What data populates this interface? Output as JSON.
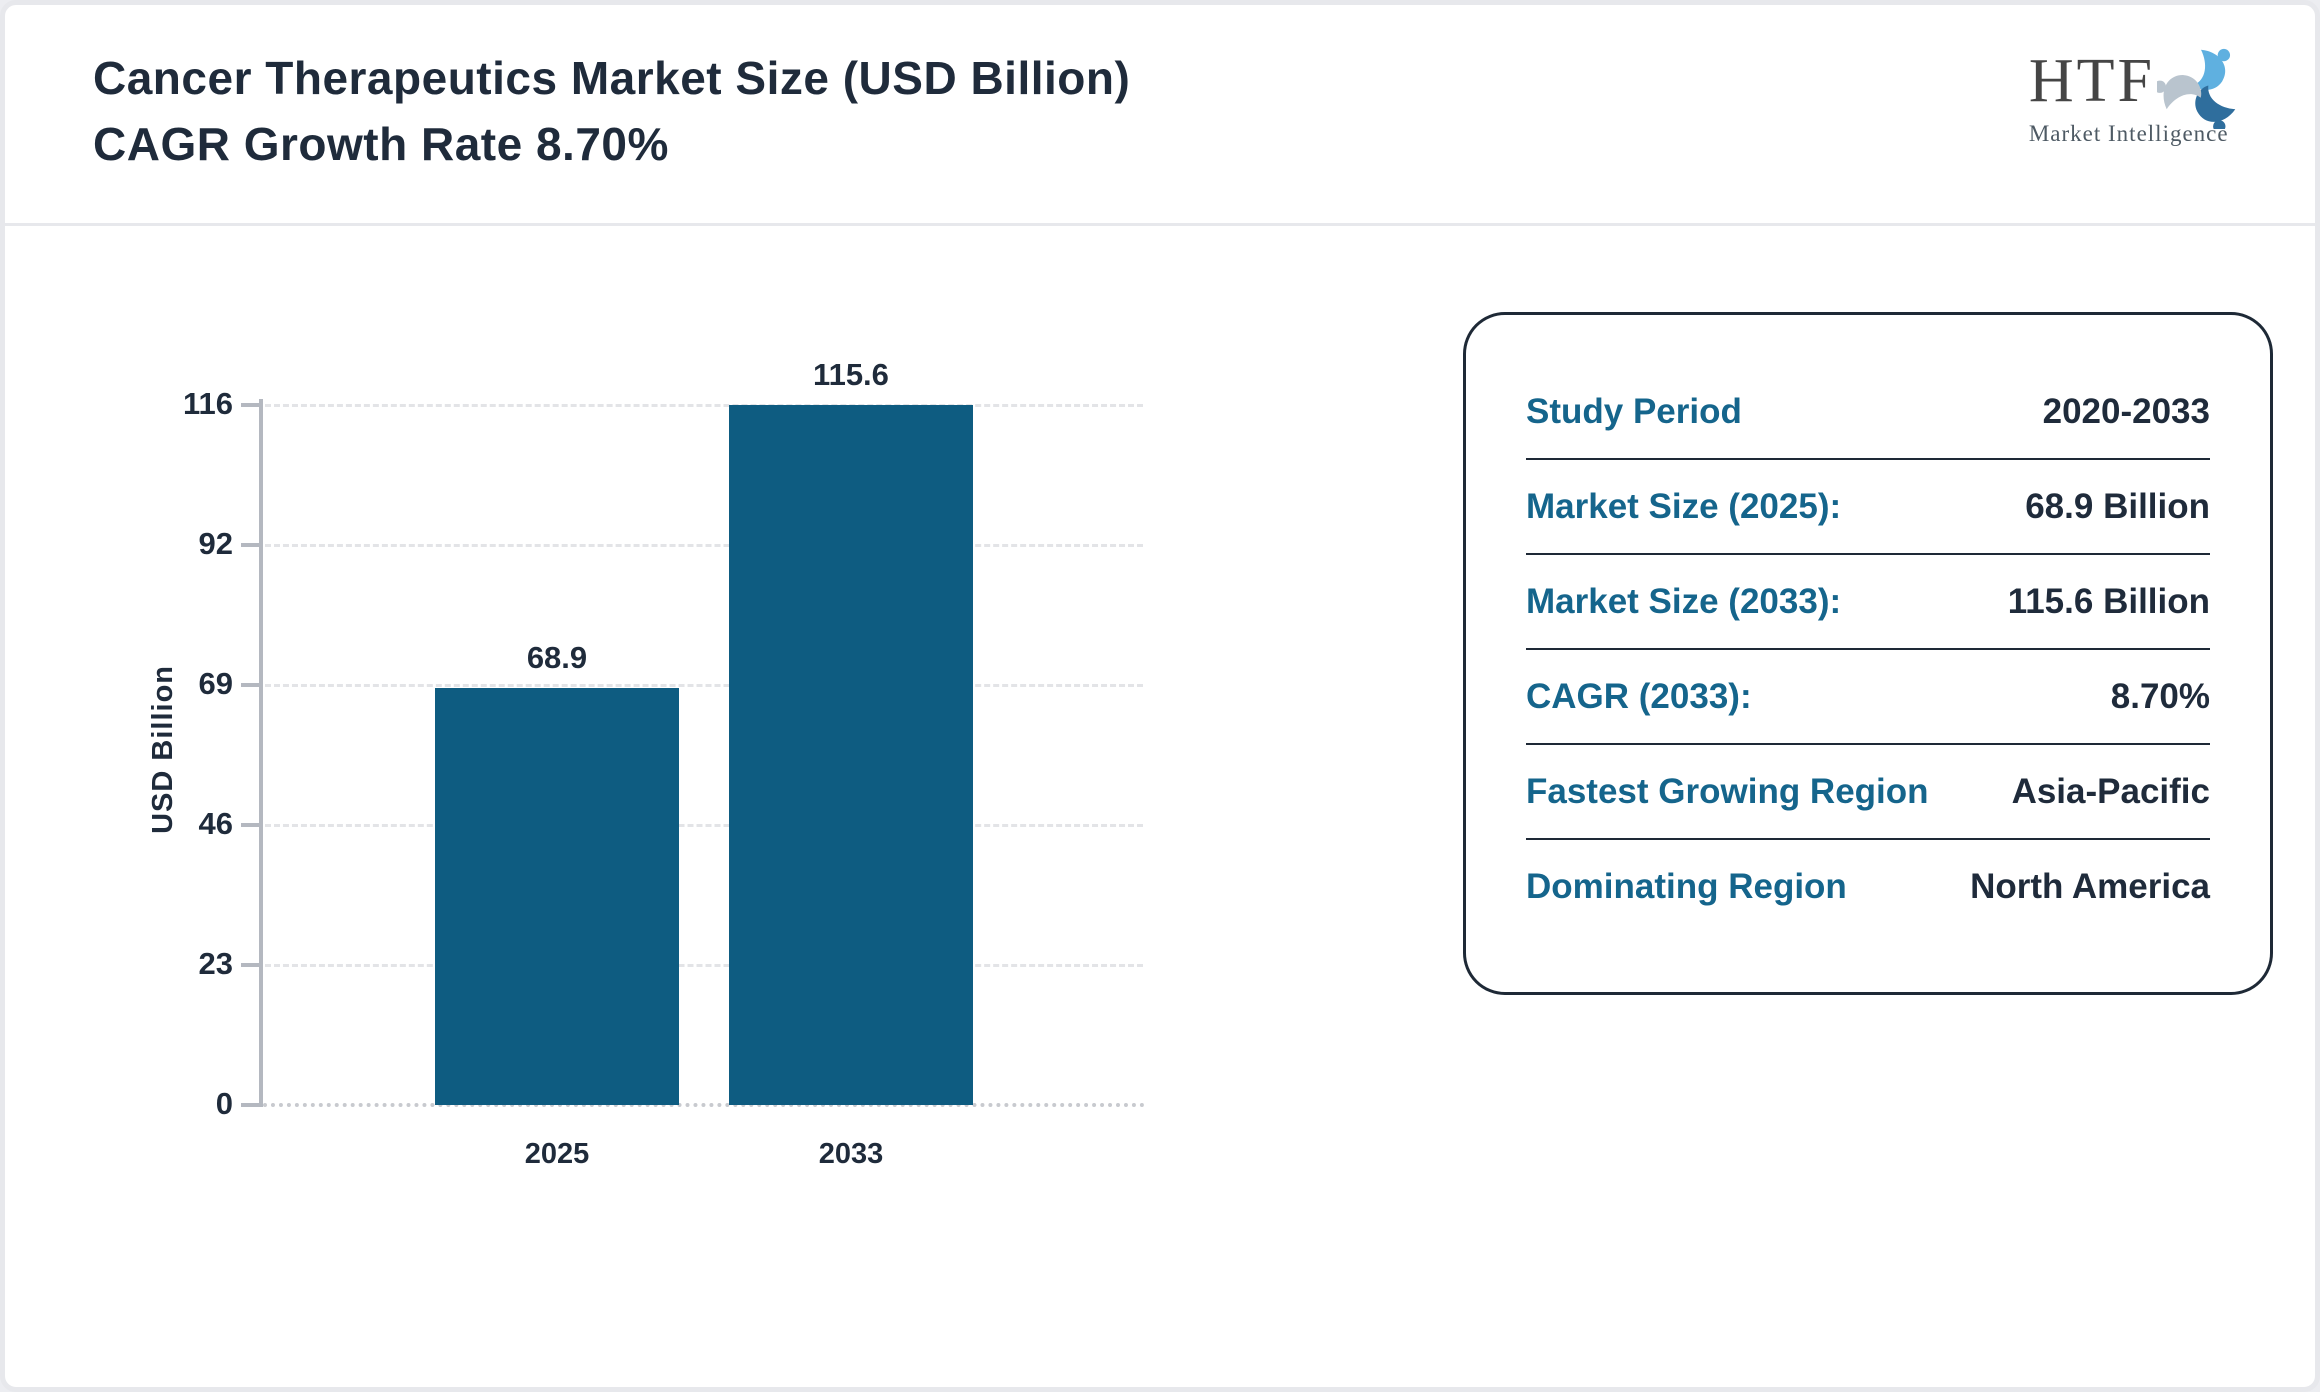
{
  "header": {
    "title_line1": "Cancer Therapeutics Market Size (USD Billion)",
    "title_line2": "CAGR Growth Rate 8.70%",
    "logo": {
      "text": "HTF",
      "subtitle": "Market Intelligence",
      "icon": "three-figures-swirl-icon",
      "icon_colors": [
        "#5fb0e0",
        "#2f6e9d",
        "#b9c4ce"
      ]
    }
  },
  "chart_data": {
    "type": "bar",
    "title": "Cancer Therapeutics Market Size (USD Billion)",
    "categories": [
      "2025",
      "2033"
    ],
    "values": [
      68.9,
      115.6
    ],
    "value_labels": [
      "68.9",
      "115.6"
    ],
    "xlabel": "",
    "ylabel": "USD Billion",
    "ylim": [
      0,
      115.6
    ],
    "yticks": [
      {
        "value": 0,
        "label": "0"
      },
      {
        "value": 23.12,
        "label": "23"
      },
      {
        "value": 46.24,
        "label": "46"
      },
      {
        "value": 69.36,
        "label": "69"
      },
      {
        "value": 92.48,
        "label": "92"
      },
      {
        "value": 115.6,
        "label": "116"
      }
    ],
    "grid": "horizontal-dashed",
    "legend": "none",
    "bar_color": "#0e5c81"
  },
  "card": {
    "rows": [
      {
        "label": "Study Period",
        "value": "2020-2033"
      },
      {
        "label": "Market Size (2025):",
        "value": "68.9 Billion"
      },
      {
        "label": "Market Size (2033):",
        "value": "115.6 Billion"
      },
      {
        "label": "CAGR (2033):",
        "value": "8.70%"
      },
      {
        "label": "Fastest Growing Region",
        "value": "Asia-Pacific"
      },
      {
        "label": "Dominating Region",
        "value": "North America"
      }
    ]
  },
  "colors": {
    "bar": "#0e5c81",
    "teal_label": "#15658c",
    "navy_text": "#1f2b3b",
    "card_border": "#1e2936",
    "axis": "#b4b8c0",
    "grid": "#e3e4e7",
    "page_border": "#e7e8ec"
  }
}
